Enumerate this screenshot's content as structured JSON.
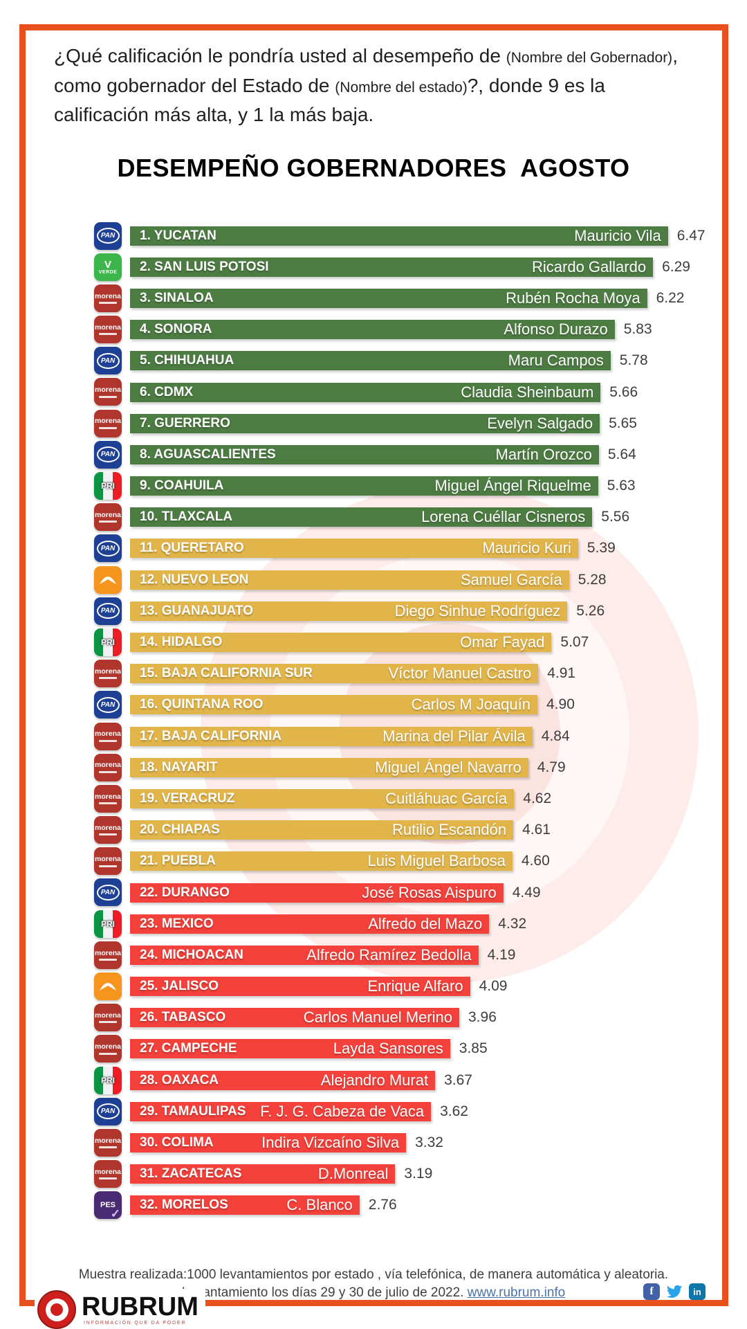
{
  "page": {
    "border_color": "#e8501d",
    "background": "#ffffff"
  },
  "question": {
    "segments": [
      {
        "text": "¿Qué calificación le pondría usted al desempeño de ",
        "small": false
      },
      {
        "text": "(Nombre del Gobernador)",
        "small": true
      },
      {
        "text": ", como gobernador del Estado de ",
        "small": false
      },
      {
        "text": "(Nombre del estado)",
        "small": true
      },
      {
        "text": "?, donde 9 es la calificación más alta, y 1 la más baja.",
        "small": false
      }
    ]
  },
  "title": "DESEMPEÑO GOBERNADORES  AGOSTO",
  "chart_data": {
    "type": "bar",
    "orientation": "horizontal",
    "value_range": [
      1,
      9
    ],
    "tier_colors": {
      "green": "#4d7c43",
      "yellow": "#e2b54b",
      "red": "#f5413b"
    },
    "rows": [
      {
        "rank": 1,
        "state": "YUCATAN",
        "governor": "Mauricio Vila",
        "value": "6.47",
        "party": "PAN",
        "tier": "green"
      },
      {
        "rank": 2,
        "state": "SAN LUIS POTOSI",
        "governor": "Ricardo Gallardo",
        "value": "6.29",
        "party": "VERDE",
        "tier": "green"
      },
      {
        "rank": 3,
        "state": "SINALOA",
        "governor": "Rubén Rocha Moya",
        "value": "6.22",
        "party": "MORENA",
        "tier": "green"
      },
      {
        "rank": 4,
        "state": "SONORA",
        "governor": "Alfonso Durazo",
        "value": "5.83",
        "party": "MORENA",
        "tier": "green"
      },
      {
        "rank": 5,
        "state": "CHIHUAHUA",
        "governor": "Maru Campos",
        "value": "5.78",
        "party": "PAN",
        "tier": "green"
      },
      {
        "rank": 6,
        "state": "CDMX",
        "governor": "Claudia Sheinbaum",
        "value": "5.66",
        "party": "MORENA",
        "tier": "green"
      },
      {
        "rank": 7,
        "state": "GUERRERO",
        "governor": "Evelyn Salgado",
        "value": "5.65",
        "party": "MORENA",
        "tier": "green"
      },
      {
        "rank": 8,
        "state": "AGUASCALIENTES",
        "governor": "Martín Orozco",
        "value": "5.64",
        "party": "PAN",
        "tier": "green"
      },
      {
        "rank": 9,
        "state": "COAHUILA",
        "governor": "Miguel Ángel Riquelme",
        "value": "5.63",
        "party": "PRI",
        "tier": "green"
      },
      {
        "rank": 10,
        "state": "TLAXCALA",
        "governor": "Lorena Cuéllar Cisneros",
        "value": "5.56",
        "party": "MORENA",
        "tier": "green"
      },
      {
        "rank": 11,
        "state": "QUERETARO",
        "governor": "Mauricio Kuri",
        "value": "5.39",
        "party": "PAN",
        "tier": "yellow"
      },
      {
        "rank": 12,
        "state": "NUEVO LEON",
        "governor": "Samuel García",
        "value": "5.28",
        "party": "MC",
        "tier": "yellow"
      },
      {
        "rank": 13,
        "state": "GUANAJUATO",
        "governor": "Diego Sinhue Rodríguez",
        "value": "5.26",
        "party": "PAN",
        "tier": "yellow"
      },
      {
        "rank": 14,
        "state": "HIDALGO",
        "governor": "Omar Fayad",
        "value": "5.07",
        "party": "PRI",
        "tier": "yellow"
      },
      {
        "rank": 15,
        "state": "BAJA CALIFORNIA SUR",
        "governor": "Víctor Manuel Castro",
        "value": "4.91",
        "party": "MORENA",
        "tier": "yellow"
      },
      {
        "rank": 16,
        "state": "QUINTANA ROO",
        "governor": "Carlos M Joaquín",
        "value": "4.90",
        "party": "PAN",
        "tier": "yellow"
      },
      {
        "rank": 17,
        "state": "BAJA CALIFORNIA",
        "governor": "Marina del Pilar Ávila",
        "value": "4.84",
        "party": "MORENA",
        "tier": "yellow"
      },
      {
        "rank": 18,
        "state": "NAYARIT",
        "governor": "Miguel Ángel Navarro",
        "value": "4.79",
        "party": "MORENA",
        "tier": "yellow"
      },
      {
        "rank": 19,
        "state": "VERACRUZ",
        "governor": "Cuitláhuac García",
        "value": "4.62",
        "party": "MORENA",
        "tier": "yellow"
      },
      {
        "rank": 20,
        "state": "CHIAPAS",
        "governor": "Rutilio Escandón",
        "value": "4.61",
        "party": "MORENA",
        "tier": "yellow"
      },
      {
        "rank": 21,
        "state": "PUEBLA",
        "governor": "Luis Miguel Barbosa",
        "value": "4.60",
        "party": "MORENA",
        "tier": "yellow"
      },
      {
        "rank": 22,
        "state": "DURANGO",
        "governor": "José Rosas Aispuro",
        "value": "4.49",
        "party": "PAN",
        "tier": "red"
      },
      {
        "rank": 23,
        "state": "MEXICO",
        "governor": "Alfredo del Mazo",
        "value": "4.32",
        "party": "PRI",
        "tier": "red"
      },
      {
        "rank": 24,
        "state": "MICHOACAN",
        "governor": "Alfredo Ramírez Bedolla",
        "value": "4.19",
        "party": "MORENA",
        "tier": "red"
      },
      {
        "rank": 25,
        "state": "JALISCO",
        "governor": "Enrique Alfaro",
        "value": "4.09",
        "party": "MC",
        "tier": "red"
      },
      {
        "rank": 26,
        "state": "TABASCO",
        "governor": "Carlos Manuel Merino",
        "value": "3.96",
        "party": "MORENA",
        "tier": "red"
      },
      {
        "rank": 27,
        "state": "CAMPECHE",
        "governor": "Layda Sansores",
        "value": "3.85",
        "party": "MORENA",
        "tier": "red"
      },
      {
        "rank": 28,
        "state": "OAXACA",
        "governor": "Alejandro Murat",
        "value": "3.67",
        "party": "PRI",
        "tier": "red"
      },
      {
        "rank": 29,
        "state": "TAMAULIPAS",
        "governor": "F. J. G. Cabeza de Vaca",
        "value": "3.62",
        "party": "PAN",
        "tier": "red"
      },
      {
        "rank": 30,
        "state": "COLIMA",
        "governor": "Indira Vizcaíno Silva",
        "value": "3.32",
        "party": "MORENA",
        "tier": "red"
      },
      {
        "rank": 31,
        "state": "ZACATECAS",
        "governor": "D.Monreal",
        "value": "3.19",
        "party": "MORENA",
        "tier": "red"
      },
      {
        "rank": 32,
        "state": "MORELOS",
        "governor": "C. Blanco",
        "value": "2.76",
        "party": "PES",
        "tier": "red"
      }
    ]
  },
  "parties": {
    "PAN": {
      "label": "PAN",
      "color": "#1d3f94"
    },
    "VERDE": {
      "label": "VERDE",
      "color": "#3cb54a"
    },
    "MORENA": {
      "label": "morena",
      "color": "#b0352c"
    },
    "PRI": {
      "label": "PRI",
      "colors": [
        "#0b9444",
        "#f2f2f2",
        "#ee1c25"
      ],
      "background": "#ffffff"
    },
    "MC": {
      "label": "MC",
      "color": "#f7941d"
    },
    "PES": {
      "label": "PES",
      "color": "#4b2a74"
    }
  },
  "footer": {
    "line1": "Muestra realizada:1000 levantamientos por estado , vía telefónica, de manera automática y aleatoria.",
    "line2_prefix": "Levantamiento los días 29 y 30 de julio de 2022. ",
    "link": "www.rubrum.info",
    "social": [
      {
        "name": "facebook-icon",
        "glyph": "f",
        "color": "#4162a8"
      },
      {
        "name": "twitter-icon",
        "glyph": "bird",
        "color": "#2aa3ef"
      },
      {
        "name": "linkedin-icon",
        "glyph": "in",
        "color": "#0e76a8"
      }
    ],
    "logo_text": "RUBRUM",
    "logo_tagline": "INFORMACIÓN QUE DA PODER"
  }
}
